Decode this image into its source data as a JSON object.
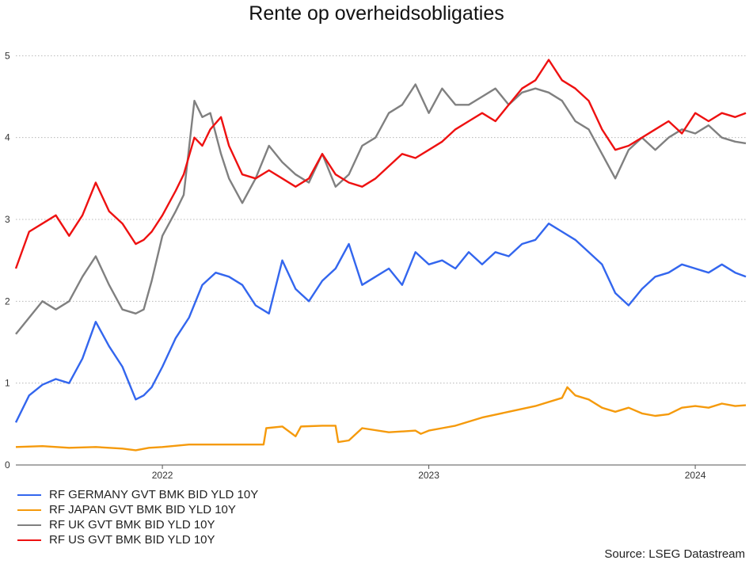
{
  "chart_data": {
    "type": "line",
    "title": "Rente op overheidsobligaties",
    "source": "Source: LSEG Datastream",
    "xlabel": "",
    "ylabel": "",
    "x_ticks": [
      "2022",
      "2023",
      "2024"
    ],
    "x_tick_values": [
      2022.0,
      2023.0,
      2024.0
    ],
    "xlim": [
      2021.45,
      2024.19
    ],
    "ylim": [
      0,
      5.1
    ],
    "y_ticks": [
      0,
      1,
      2,
      3,
      4,
      5
    ],
    "grid": "horizontal-dotted",
    "legend_position": "bottom-left",
    "series": [
      {
        "name": "RF GERMANY GVT BMK BID YLD 10Y",
        "color": "#3366ee",
        "x": [
          2021.45,
          2021.5,
          2021.55,
          2021.6,
          2021.65,
          2021.7,
          2021.75,
          2021.8,
          2021.85,
          2021.9,
          2021.93,
          2021.96,
          2022.0,
          2022.05,
          2022.1,
          2022.15,
          2022.2,
          2022.25,
          2022.3,
          2022.35,
          2022.4,
          2022.45,
          2022.5,
          2022.55,
          2022.6,
          2022.65,
          2022.7,
          2022.75,
          2022.8,
          2022.85,
          2022.9,
          2022.95,
          2023.0,
          2023.05,
          2023.1,
          2023.15,
          2023.2,
          2023.25,
          2023.3,
          2023.35,
          2023.4,
          2023.45,
          2023.5,
          2023.55,
          2023.6,
          2023.65,
          2023.7,
          2023.75,
          2023.8,
          2023.85,
          2023.9,
          2023.95,
          2024.0,
          2024.05,
          2024.1,
          2024.15,
          2024.19
        ],
        "values": [
          0.52,
          0.85,
          0.98,
          1.05,
          1.0,
          1.3,
          1.75,
          1.45,
          1.2,
          0.8,
          0.85,
          0.95,
          1.2,
          1.55,
          1.8,
          2.2,
          2.35,
          2.3,
          2.2,
          1.95,
          1.85,
          2.5,
          2.15,
          2.0,
          2.25,
          2.4,
          2.7,
          2.2,
          2.3,
          2.4,
          2.2,
          2.6,
          2.45,
          2.5,
          2.4,
          2.6,
          2.45,
          2.6,
          2.55,
          2.7,
          2.75,
          2.95,
          2.85,
          2.75,
          2.6,
          2.45,
          2.1,
          1.95,
          2.15,
          2.3,
          2.35,
          2.45,
          2.4,
          2.35,
          2.45,
          2.35,
          2.3
        ]
      },
      {
        "name": "RF JAPAN GVT BMK BID YLD 10Y",
        "color": "#f59a0c",
        "x": [
          2021.45,
          2021.55,
          2021.65,
          2021.75,
          2021.85,
          2021.9,
          2021.95,
          2022.0,
          2022.1,
          2022.2,
          2022.3,
          2022.38,
          2022.39,
          2022.45,
          2022.5,
          2022.52,
          2022.6,
          2022.65,
          2022.66,
          2022.7,
          2022.75,
          2022.85,
          2022.95,
          2022.97,
          2023.0,
          2023.05,
          2023.1,
          2023.2,
          2023.3,
          2023.4,
          2023.5,
          2023.52,
          2023.55,
          2023.6,
          2023.65,
          2023.7,
          2023.75,
          2023.8,
          2023.85,
          2023.9,
          2023.95,
          2024.0,
          2024.05,
          2024.1,
          2024.15,
          2024.19
        ],
        "values": [
          0.22,
          0.23,
          0.21,
          0.22,
          0.2,
          0.18,
          0.21,
          0.22,
          0.25,
          0.25,
          0.25,
          0.25,
          0.45,
          0.47,
          0.35,
          0.47,
          0.48,
          0.48,
          0.28,
          0.3,
          0.45,
          0.4,
          0.42,
          0.38,
          0.42,
          0.45,
          0.48,
          0.58,
          0.65,
          0.72,
          0.82,
          0.95,
          0.85,
          0.8,
          0.7,
          0.65,
          0.7,
          0.63,
          0.6,
          0.62,
          0.7,
          0.72,
          0.7,
          0.75,
          0.72,
          0.73
        ]
      },
      {
        "name": "RF UK GVT BMK BID YLD 10Y",
        "color": "#808080",
        "x": [
          2021.45,
          2021.5,
          2021.55,
          2021.6,
          2021.65,
          2021.7,
          2021.75,
          2021.8,
          2021.85,
          2021.9,
          2021.93,
          2021.96,
          2022.0,
          2022.05,
          2022.08,
          2022.12,
          2022.15,
          2022.18,
          2022.22,
          2022.25,
          2022.3,
          2022.35,
          2022.4,
          2022.45,
          2022.5,
          2022.55,
          2022.6,
          2022.65,
          2022.7,
          2022.75,
          2022.8,
          2022.85,
          2022.9,
          2022.95,
          2023.0,
          2023.05,
          2023.1,
          2023.15,
          2023.2,
          2023.25,
          2023.3,
          2023.35,
          2023.4,
          2023.45,
          2023.5,
          2023.55,
          2023.6,
          2023.65,
          2023.7,
          2023.75,
          2023.8,
          2023.85,
          2023.9,
          2023.95,
          2024.0,
          2024.05,
          2024.1,
          2024.15,
          2024.19
        ],
        "values": [
          1.6,
          1.8,
          2.0,
          1.9,
          2.0,
          2.3,
          2.55,
          2.2,
          1.9,
          1.85,
          1.9,
          2.25,
          2.8,
          3.1,
          3.3,
          4.45,
          4.25,
          4.3,
          3.8,
          3.5,
          3.2,
          3.5,
          3.9,
          3.7,
          3.55,
          3.45,
          3.8,
          3.4,
          3.55,
          3.9,
          4.0,
          4.3,
          4.4,
          4.65,
          4.3,
          4.6,
          4.4,
          4.4,
          4.5,
          4.6,
          4.4,
          4.55,
          4.6,
          4.55,
          4.45,
          4.2,
          4.1,
          3.8,
          3.5,
          3.85,
          4.0,
          3.85,
          4.0,
          4.1,
          4.05,
          4.15,
          4.0,
          3.95,
          3.93
        ]
      },
      {
        "name": "RF US GVT BMK BID YLD 10Y",
        "color": "#ee1111",
        "x": [
          2021.45,
          2021.5,
          2021.55,
          2021.6,
          2021.65,
          2021.7,
          2021.75,
          2021.8,
          2021.85,
          2021.9,
          2021.93,
          2021.96,
          2022.0,
          2022.05,
          2022.08,
          2022.12,
          2022.15,
          2022.18,
          2022.22,
          2022.25,
          2022.3,
          2022.35,
          2022.4,
          2022.45,
          2022.5,
          2022.55,
          2022.6,
          2022.65,
          2022.7,
          2022.75,
          2022.8,
          2022.85,
          2022.9,
          2022.95,
          2023.0,
          2023.05,
          2023.1,
          2023.15,
          2023.2,
          2023.25,
          2023.3,
          2023.35,
          2023.4,
          2023.45,
          2023.5,
          2023.55,
          2023.6,
          2023.65,
          2023.7,
          2023.75,
          2023.8,
          2023.85,
          2023.9,
          2023.95,
          2024.0,
          2024.05,
          2024.1,
          2024.15,
          2024.19
        ],
        "values": [
          2.4,
          2.85,
          2.95,
          3.05,
          2.8,
          3.05,
          3.45,
          3.1,
          2.95,
          2.7,
          2.75,
          2.85,
          3.05,
          3.35,
          3.55,
          4.0,
          3.9,
          4.1,
          4.25,
          3.9,
          3.55,
          3.5,
          3.6,
          3.5,
          3.4,
          3.5,
          3.8,
          3.55,
          3.45,
          3.4,
          3.5,
          3.65,
          3.8,
          3.75,
          3.85,
          3.95,
          4.1,
          4.2,
          4.3,
          4.2,
          4.4,
          4.6,
          4.7,
          4.95,
          4.7,
          4.6,
          4.45,
          4.1,
          3.85,
          3.9,
          4.0,
          4.1,
          4.2,
          4.05,
          4.3,
          4.2,
          4.3,
          4.25,
          4.3
        ]
      }
    ]
  }
}
